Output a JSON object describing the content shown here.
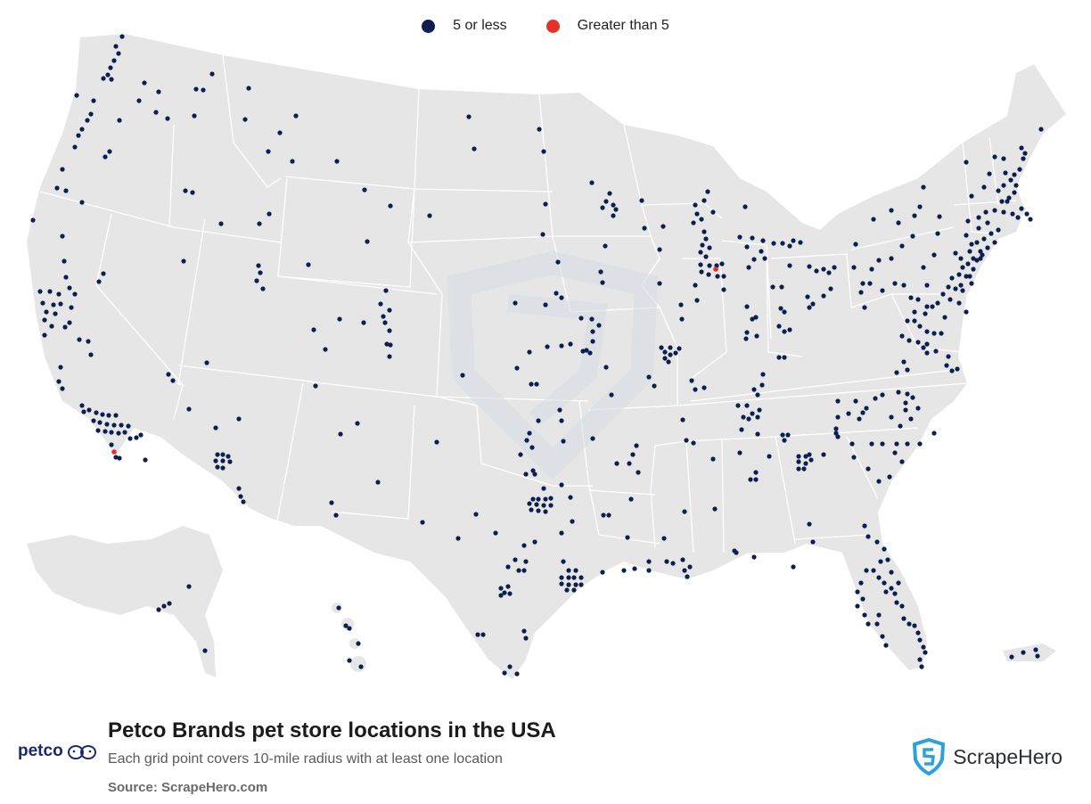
{
  "legend": {
    "items": [
      {
        "label": "5 or less",
        "color": "#0d1f4f"
      },
      {
        "label": "Greater than 5",
        "color": "#e6312a"
      }
    ]
  },
  "map": {
    "land_color": "#e6e6e6",
    "border_color": "#ffffff",
    "watermark": "shield-watermark"
  },
  "footer": {
    "title": "Petco Brands pet store locations in the USA",
    "subtitle": "Each grid point covers 10-mile radius with at least one location",
    "source": "Source: ScrapeHero.com",
    "left_logo_text": "petco",
    "right_logo_text": "ScrapeHero",
    "accent": "#2ea2d8"
  }
}
